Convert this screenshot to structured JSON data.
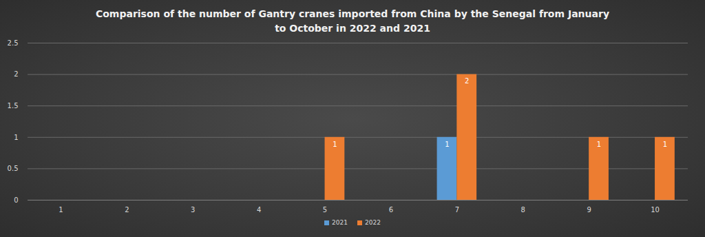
{
  "chart_data": {
    "type": "bar",
    "title": "Comparison of the number of Gantry cranes imported from China by the Senegal from January\nto October in 2022 and 2021",
    "categories": [
      "1",
      "2",
      "3",
      "4",
      "5",
      "6",
      "7",
      "8",
      "9",
      "10"
    ],
    "series": [
      {
        "name": "2021",
        "color": "#5b9bd5",
        "values": [
          null,
          null,
          null,
          null,
          null,
          null,
          1,
          null,
          null,
          null
        ]
      },
      {
        "name": "2022",
        "color": "#ed7d31",
        "values": [
          null,
          null,
          null,
          null,
          1,
          null,
          2,
          null,
          1,
          1
        ]
      }
    ],
    "ylim": [
      0,
      2.5
    ],
    "yticks": [
      0,
      0.5,
      1,
      1.5,
      2,
      2.5
    ],
    "grid": true,
    "legend": "bottom",
    "data_labels": true
  }
}
